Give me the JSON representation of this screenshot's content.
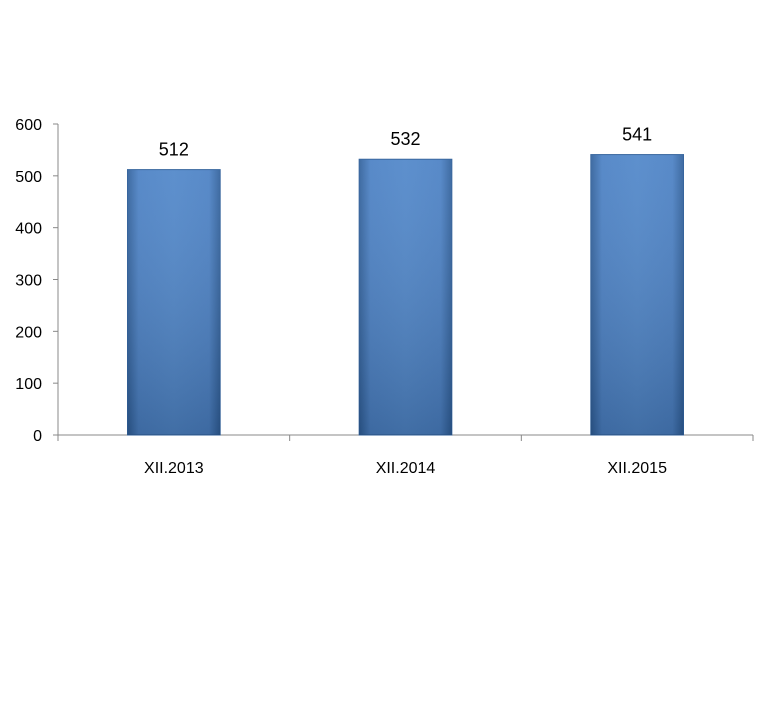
{
  "chart_data": {
    "type": "bar",
    "categories": [
      "XII.2013",
      "XII.2014",
      "XII.2015"
    ],
    "values": [
      512,
      532,
      541
    ],
    "data_labels": [
      "512",
      "532",
      "541"
    ],
    "title": "",
    "xlabel": "",
    "ylabel": "",
    "ylim": [
      0,
      600
    ],
    "yticks": [
      0,
      100,
      200,
      300,
      400,
      500,
      600
    ],
    "ytick_labels": [
      "0",
      "100",
      "200",
      "300",
      "400",
      "500",
      "600"
    ],
    "grid": false,
    "legend": "none",
    "colors": {
      "bar": "#4a7fc1",
      "bar_edge": "#2f5f9a",
      "axis": "#888888"
    }
  }
}
